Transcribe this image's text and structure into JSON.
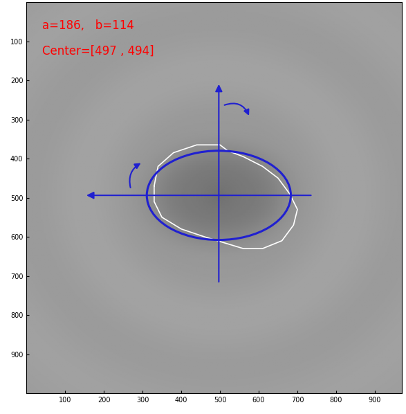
{
  "chart_data": {
    "type": "image_ellipse_fit",
    "annotations": [
      "a=186,   b=114",
      "Center=[497 , 494]"
    ],
    "ellipse": {
      "a": 186,
      "b": 114,
      "center": [
        497,
        494
      ],
      "color": "#2020d0"
    },
    "contour": {
      "color": "#ffffff",
      "x": [
        330,
        340,
        380,
        440,
        500,
        520,
        560,
        610,
        650,
        680,
        700,
        690,
        660,
        610,
        560,
        510,
        460,
        400,
        350,
        330
      ],
      "y": [
        470,
        420,
        385,
        365,
        365,
        380,
        395,
        420,
        450,
        490,
        530,
        570,
        610,
        630,
        630,
        615,
        600,
        580,
        550,
        510
      ]
    },
    "crosshair": {
      "horizontal": [
        150,
        740
      ],
      "vertical": [
        720,
        205
      ]
    },
    "xlim": [
      0,
      970
    ],
    "ylim": [
      1000,
      0
    ],
    "xticks": [
      100,
      200,
      300,
      400,
      500,
      600,
      700,
      800,
      900
    ],
    "yticks": [
      100,
      200,
      300,
      400,
      500,
      600,
      700,
      800,
      900
    ]
  }
}
